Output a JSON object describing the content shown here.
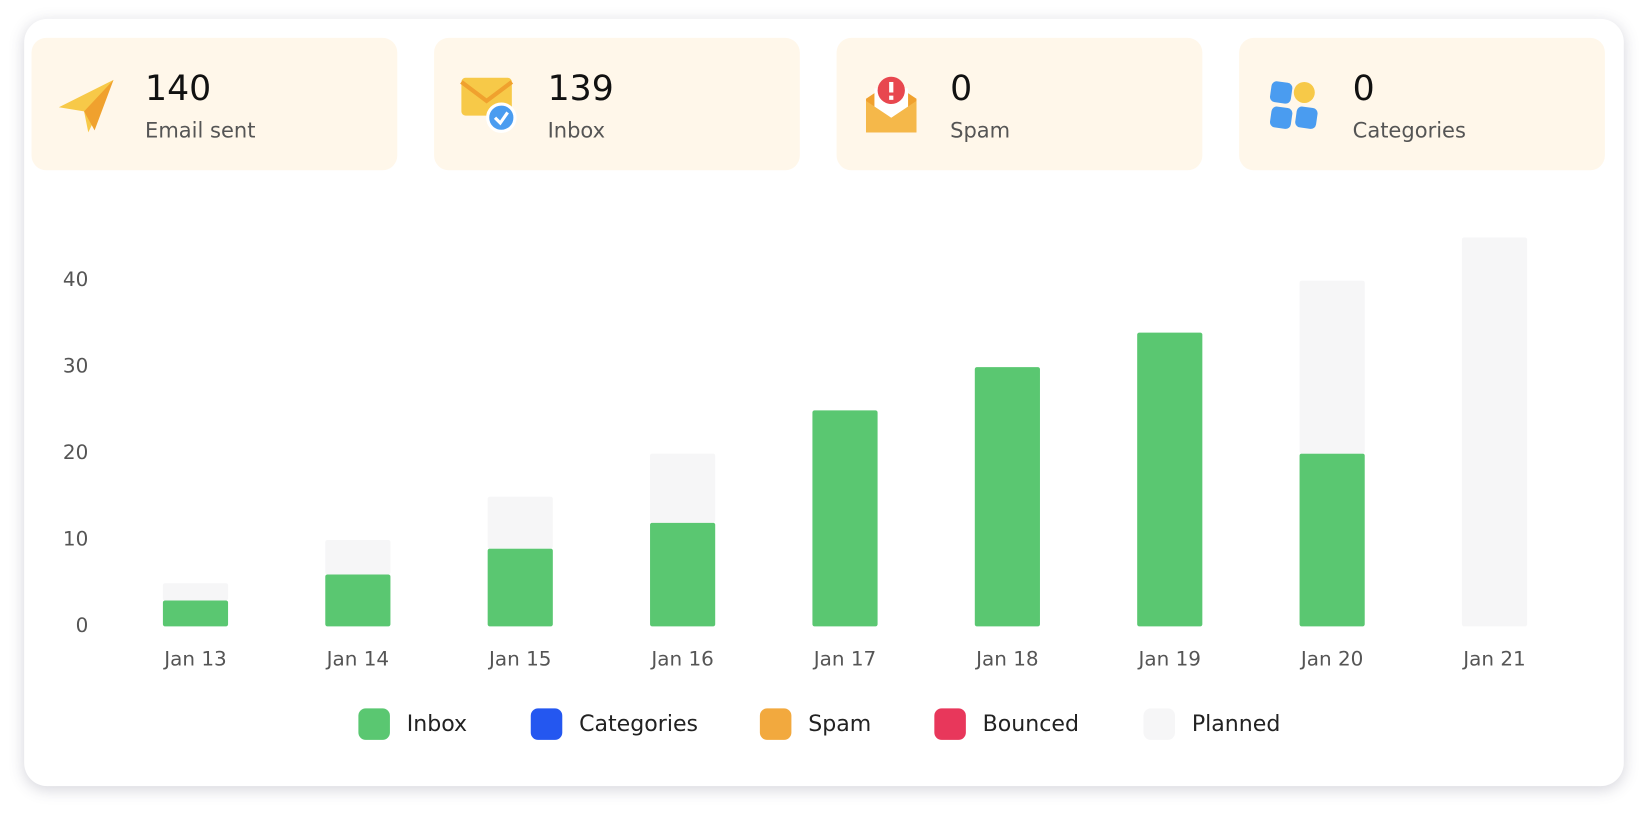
{
  "stats": [
    {
      "value": 140,
      "label": "Email sent"
    },
    {
      "value": 139,
      "label": "Inbox"
    },
    {
      "value": 0,
      "label": "Spam"
    },
    {
      "value": 0,
      "label": "Categories"
    }
  ],
  "chart_data": {
    "type": "bar",
    "stacked": true,
    "categories": [
      "Jan 13",
      "Jan 14",
      "Jan 15",
      "Jan 16",
      "Jan 17",
      "Jan 18",
      "Jan 19",
      "Jan 20",
      "Jan 21"
    ],
    "series": [
      {
        "name": "Inbox",
        "color": "#5ac771",
        "values": [
          3,
          6,
          9,
          12,
          25,
          30,
          34,
          20,
          0
        ]
      },
      {
        "name": "Categories",
        "color": "#2457f0",
        "values": [
          0,
          0,
          0,
          0,
          0,
          0,
          0,
          0,
          0
        ]
      },
      {
        "name": "Spam",
        "color": "#f2a93e",
        "values": [
          0,
          0,
          0,
          0,
          0,
          0,
          0,
          0,
          0
        ]
      },
      {
        "name": "Bounced",
        "color": "#e8375b",
        "values": [
          0,
          0,
          0,
          0,
          0,
          0,
          0,
          0,
          0
        ]
      },
      {
        "name": "Planned",
        "color": "#f6f6f7",
        "values": [
          2,
          4,
          6,
          8,
          0,
          0,
          0,
          20,
          45
        ]
      }
    ],
    "ylim": [
      0,
      45
    ],
    "yticks": [
      0,
      10,
      20,
      30,
      40
    ],
    "grid": false,
    "legend": "bottom"
  }
}
